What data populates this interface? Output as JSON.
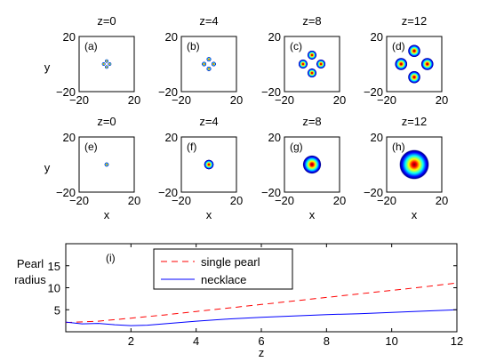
{
  "figure": {
    "rows": [
      {
        "ylabel": "y",
        "xlabel": "",
        "panels": [
          {
            "z_title": "z=0",
            "tag": "(a)",
            "kind": "necklace",
            "n_pearls": 4,
            "ring_radius": 2.2,
            "pearl_radius": 1.3
          },
          {
            "z_title": "z=4",
            "tag": "(b)",
            "kind": "necklace",
            "n_pearls": 4,
            "ring_radius": 3.5,
            "pearl_radius": 1.7
          },
          {
            "z_title": "z=8",
            "tag": "(c)",
            "kind": "necklace",
            "n_pearls": 4,
            "ring_radius": 6.5,
            "pearl_radius": 3.4
          },
          {
            "z_title": "z=12",
            "tag": "(d)",
            "kind": "necklace",
            "n_pearls": 4,
            "ring_radius": 9.5,
            "pearl_radius": 4.6
          }
        ]
      },
      {
        "ylabel": "y",
        "xlabel": "x",
        "panels": [
          {
            "z_title": "z=0",
            "tag": "(e)",
            "kind": "single",
            "pearl_radius": 1.6
          },
          {
            "z_title": "z=4",
            "tag": "(f)",
            "kind": "single",
            "pearl_radius": 3.6
          },
          {
            "z_title": "z=8",
            "tag": "(g)",
            "kind": "single",
            "pearl_radius": 6.8
          },
          {
            "z_title": "z=12",
            "tag": "(h)",
            "kind": "single",
            "pearl_radius": 11.0
          }
        ]
      }
    ],
    "panel_axes": {
      "xlim": [
        -20,
        20
      ],
      "ylim": [
        -20,
        20
      ],
      "xtick_labels": [
        "−20",
        "20"
      ],
      "ytick_labels": [
        "20",
        "−20"
      ]
    },
    "colormap": [
      "#00008f",
      "#0000ff",
      "#00ffff",
      "#ffff00",
      "#ff0000",
      "#800000"
    ]
  },
  "chart_data": {
    "type": "line",
    "tag": "(i)",
    "ylabel_lines": [
      "Pearl",
      "radius"
    ],
    "xlabel": "z",
    "xlim": [
      0,
      12
    ],
    "ylim": [
      0,
      20
    ],
    "xtick_labels": [
      "2",
      "4",
      "6",
      "8",
      "10",
      "12"
    ],
    "xticks": [
      2,
      4,
      6,
      8,
      10,
      12
    ],
    "ytick_labels": [
      "5",
      "10",
      "15"
    ],
    "yticks": [
      5,
      10,
      15
    ],
    "grid": false,
    "legend_position": "top-center",
    "series": [
      {
        "name": "single pearl",
        "color": "#ff0000",
        "style": "dashed",
        "x": [
          0,
          1,
          2,
          3,
          4,
          5,
          6,
          7,
          8,
          9,
          10,
          11,
          12
        ],
        "y": [
          2.1,
          2.4,
          3.1,
          3.8,
          4.6,
          5.4,
          6.2,
          7.0,
          7.8,
          8.6,
          9.4,
          10.2,
          11.1
        ]
      },
      {
        "name": "necklace",
        "color": "#0000ff",
        "style": "solid",
        "x": [
          0,
          0.5,
          1,
          1.5,
          2,
          2.5,
          3,
          3.5,
          4,
          5,
          6,
          7,
          8,
          9,
          10,
          11,
          12
        ],
        "y": [
          2.2,
          1.8,
          1.9,
          1.6,
          1.4,
          1.5,
          1.8,
          2.1,
          2.4,
          2.9,
          3.3,
          3.6,
          3.9,
          4.1,
          4.4,
          4.7,
          5.0
        ]
      }
    ]
  }
}
